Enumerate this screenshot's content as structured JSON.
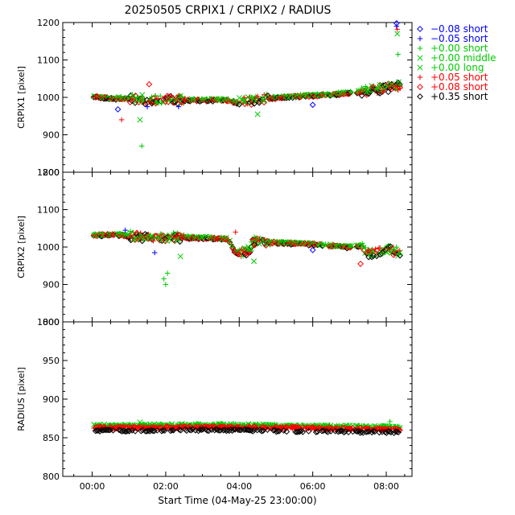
{
  "title": "20250505 CRPIX1 / CRPIX2 / RADIUS",
  "xlabel": "Start Time (04-May-25 23:00:00)",
  "colors": {
    "blue": "#0000ff",
    "green": "#00cc00",
    "red": "#ff0000",
    "black": "#000000"
  },
  "legend": [
    {
      "label": "−0.08 short",
      "marker": "diamond",
      "color": "#0000ff"
    },
    {
      "label": "−0.05 short",
      "marker": "plus",
      "color": "#0000ff"
    },
    {
      "label": "+0.00 short",
      "marker": "plus",
      "color": "#00cc00"
    },
    {
      "label": "+0.00 middle",
      "marker": "cross",
      "color": "#00cc00"
    },
    {
      "label": "+0.00 long",
      "marker": "cross",
      "color": "#00cc00"
    },
    {
      "label": "+0.05 short",
      "marker": "plus",
      "color": "#ff0000"
    },
    {
      "label": "+0.08 short",
      "marker": "diamond",
      "color": "#ff0000"
    },
    {
      "label": "+0.35 short",
      "marker": "diamond",
      "color": "#000000"
    }
  ],
  "chart_data": [
    {
      "type": "scatter",
      "ylabel": "CRPIX1 [pixel]",
      "ylim": [
        800,
        1200
      ],
      "yticks": [
        "800",
        "900",
        "1000",
        "1100",
        "1200"
      ],
      "xlim": [
        -0.8,
        8.7
      ],
      "xticks": [
        "00:00",
        "02:00",
        "04:00",
        "06:00",
        "08:00"
      ],
      "baseline": [
        [
          0.1,
          1002
        ],
        [
          0.5,
          998
        ],
        [
          1.0,
          997
        ],
        [
          1.5,
          994
        ],
        [
          2.0,
          994
        ],
        [
          2.5,
          993
        ],
        [
          3.0,
          993
        ],
        [
          3.7,
          993
        ],
        [
          3.9,
          986
        ],
        [
          4.2,
          990
        ],
        [
          4.6,
          996
        ],
        [
          5.0,
          999
        ],
        [
          5.5,
          1003
        ],
        [
          6.0,
          1005
        ],
        [
          6.5,
          1008
        ],
        [
          7.0,
          1012
        ],
        [
          7.4,
          1018
        ],
        [
          7.8,
          1022
        ],
        [
          8.3,
          1030
        ]
      ],
      "outliers": [
        {
          "x": 0.8,
          "y": 940,
          "marker": "plus",
          "color": "#ff0000"
        },
        {
          "x": 0.7,
          "y": 968,
          "marker": "diamond",
          "color": "#0000ff"
        },
        {
          "x": 1.35,
          "y": 870,
          "marker": "plus",
          "color": "#00cc00"
        },
        {
          "x": 1.3,
          "y": 940,
          "marker": "cross",
          "color": "#00cc00"
        },
        {
          "x": 1.5,
          "y": 975,
          "marker": "plus",
          "color": "#0000ff"
        },
        {
          "x": 1.55,
          "y": 1035,
          "marker": "diamond",
          "color": "#ff0000"
        },
        {
          "x": 2.35,
          "y": 975,
          "marker": "plus",
          "color": "#0000ff"
        },
        {
          "x": 4.5,
          "y": 955,
          "marker": "cross",
          "color": "#00cc00"
        },
        {
          "x": 6.0,
          "y": 980,
          "marker": "diamond",
          "color": "#0000ff"
        },
        {
          "x": 8.28,
          "y": 1198,
          "marker": "diamond",
          "color": "#0000ff"
        },
        {
          "x": 8.28,
          "y": 1190,
          "marker": "plus",
          "color": "#0000ff"
        },
        {
          "x": 8.3,
          "y": 1182,
          "marker": "plus",
          "color": "#ff0000"
        },
        {
          "x": 8.3,
          "y": 1170,
          "marker": "cross",
          "color": "#00cc00"
        },
        {
          "x": 8.32,
          "y": 1115,
          "marker": "plus",
          "color": "#00cc00"
        }
      ]
    },
    {
      "type": "scatter",
      "ylabel": "CRPIX2 [pixel]",
      "ylim": [
        800,
        1200
      ],
      "yticks": [
        "800",
        "900",
        "1000",
        "1100",
        "1200"
      ],
      "xlim": [
        -0.8,
        8.7
      ],
      "xticks": [
        "00:00",
        "02:00",
        "04:00",
        "06:00",
        "08:00"
      ],
      "baseline": [
        [
          0.1,
          1032
        ],
        [
          0.6,
          1034
        ],
        [
          1.0,
          1030
        ],
        [
          1.5,
          1026
        ],
        [
          2.0,
          1026
        ],
        [
          2.5,
          1026
        ],
        [
          3.0,
          1025
        ],
        [
          3.7,
          1022
        ],
        [
          3.9,
          985
        ],
        [
          4.2,
          985
        ],
        [
          4.4,
          1015
        ],
        [
          5.0,
          1012
        ],
        [
          5.5,
          1010
        ],
        [
          6.0,
          1008
        ],
        [
          6.5,
          1004
        ],
        [
          7.0,
          1000
        ],
        [
          7.3,
          1002
        ],
        [
          7.6,
          980
        ],
        [
          8.0,
          995
        ],
        [
          8.4,
          985
        ]
      ],
      "outliers": [
        {
          "x": 0.9,
          "y": 1045,
          "marker": "plus",
          "color": "#0000ff"
        },
        {
          "x": 1.7,
          "y": 985,
          "marker": "plus",
          "color": "#0000ff"
        },
        {
          "x": 1.95,
          "y": 915,
          "marker": "plus",
          "color": "#00cc00"
        },
        {
          "x": 2.0,
          "y": 900,
          "marker": "plus",
          "color": "#00cc00"
        },
        {
          "x": 2.05,
          "y": 930,
          "marker": "plus",
          "color": "#00cc00"
        },
        {
          "x": 2.4,
          "y": 975,
          "marker": "cross",
          "color": "#00cc00"
        },
        {
          "x": 3.9,
          "y": 1040,
          "marker": "plus",
          "color": "#ff0000"
        },
        {
          "x": 4.4,
          "y": 962,
          "marker": "cross",
          "color": "#00cc00"
        },
        {
          "x": 6.0,
          "y": 992,
          "marker": "diamond",
          "color": "#0000ff"
        },
        {
          "x": 7.3,
          "y": 955,
          "marker": "diamond",
          "color": "#ff0000"
        }
      ]
    },
    {
      "type": "scatter",
      "ylabel": "RADIUS [pixel]",
      "ylim": [
        800,
        1000
      ],
      "yticks": [
        "800",
        "850",
        "900",
        "950",
        "1000"
      ],
      "xlim": [
        -0.8,
        8.7
      ],
      "xticks": [
        "00:00",
        "02:00",
        "04:00",
        "06:00",
        "08:00"
      ],
      "bands": [
        {
          "series": "+0.00",
          "color": "#00cc00",
          "y": [
            [
              0.1,
              866
            ],
            [
              3.5,
              867
            ],
            [
              6.5,
              865
            ],
            [
              8.4,
              864
            ]
          ]
        },
        {
          "series": "+0.05",
          "color": "#ff0000",
          "y": [
            [
              0.1,
              863
            ],
            [
              3.5,
              864
            ],
            [
              6.5,
              862
            ],
            [
              8.4,
              861
            ]
          ]
        },
        {
          "series": "+0.35",
          "color": "#000000",
          "y": [
            [
              0.1,
              859
            ],
            [
              3.5,
              860
            ],
            [
              6.5,
              858
            ],
            [
              8.4,
              857
            ]
          ]
        }
      ],
      "outliers": [
        {
          "x": 8.1,
          "y": 871,
          "marker": "plus",
          "color": "#00cc00"
        },
        {
          "x": 1.3,
          "y": 870,
          "marker": "cross",
          "color": "#00cc00"
        }
      ]
    }
  ]
}
